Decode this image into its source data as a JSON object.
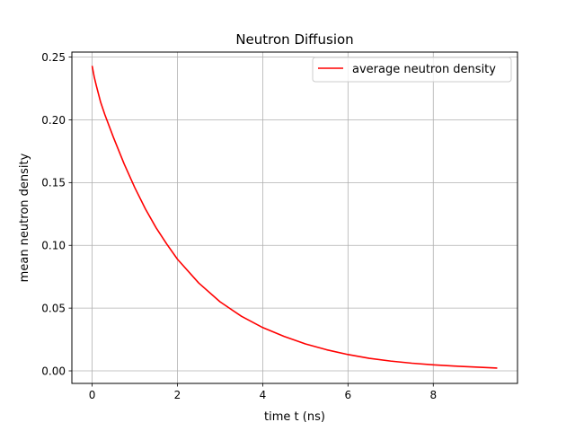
{
  "chart_data": {
    "type": "line",
    "title": "Neutron Diffusion",
    "xlabel": "time t (ns)",
    "ylabel": "mean neutron density",
    "xlim": [
      -0.475,
      9.975
    ],
    "ylim": [
      -0.01,
      0.254
    ],
    "xticks": [
      0,
      2,
      4,
      6,
      8
    ],
    "xtick_labels": [
      "0",
      "2",
      "4",
      "6",
      "8"
    ],
    "yticks": [
      0.0,
      0.05,
      0.1,
      0.15,
      0.2,
      0.25
    ],
    "ytick_labels": [
      "0.00",
      "0.05",
      "0.10",
      "0.15",
      "0.20",
      "0.25"
    ],
    "grid": true,
    "legend_position": "top-right",
    "series": [
      {
        "name": "average neutron density",
        "color": "#ff0000",
        "x": [
          0,
          0.05,
          0.1,
          0.2,
          0.3,
          0.5,
          0.75,
          1.0,
          1.25,
          1.5,
          1.75,
          2.0,
          2.5,
          3.0,
          3.5,
          4.0,
          4.5,
          5.0,
          5.5,
          6.0,
          6.5,
          7.0,
          7.5,
          8.0,
          8.5,
          9.0,
          9.5
        ],
        "y": [
          0.243,
          0.234,
          0.227,
          0.214,
          0.204,
          0.186,
          0.165,
          0.146,
          0.129,
          0.114,
          0.101,
          0.089,
          0.07,
          0.055,
          0.0435,
          0.0345,
          0.0275,
          0.0215,
          0.0168,
          0.013,
          0.01,
          0.0078,
          0.0061,
          0.0048,
          0.0038,
          0.003,
          0.0022
        ]
      }
    ]
  }
}
